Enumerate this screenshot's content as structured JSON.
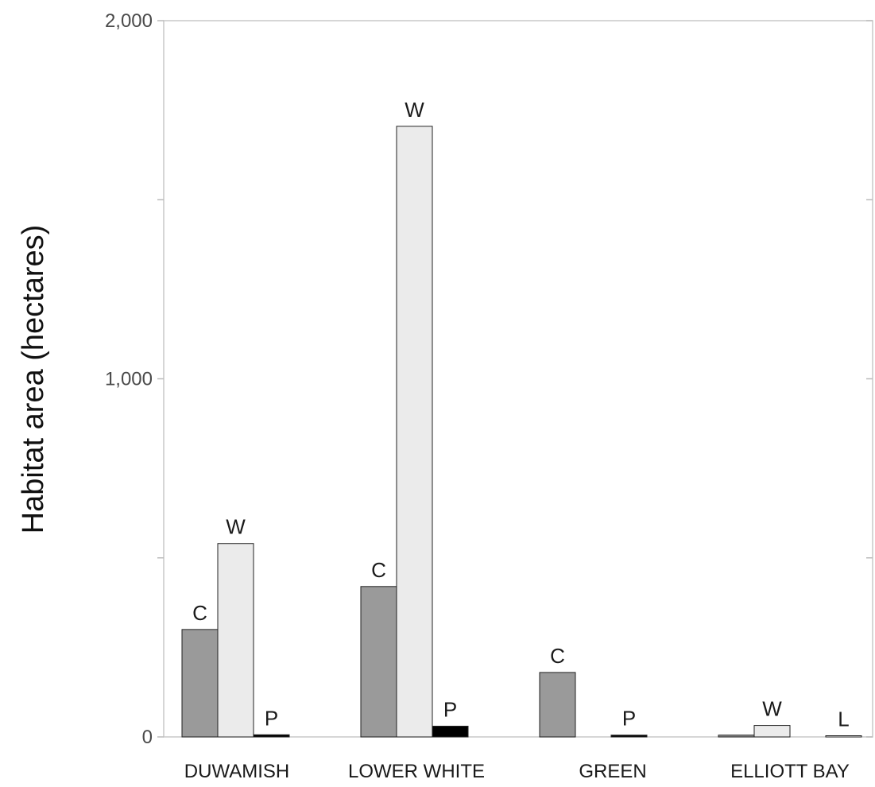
{
  "chart_data": {
    "type": "bar",
    "ylabel": "Habitat area (hectares)",
    "xlabel": "",
    "ylim": [
      0,
      2000
    ],
    "yticks": [
      0,
      500,
      1000,
      1500,
      2000
    ],
    "ytick_labels": [
      "0",
      "",
      "1,000",
      "",
      "2,000"
    ],
    "categories": [
      "DUWAMISH",
      "LOWER WHITE",
      "GREEN",
      "ELLIOTT BAY"
    ],
    "series": [
      {
        "key": "C",
        "color": "#9a9a9a",
        "values": [
          300,
          420,
          180,
          5
        ]
      },
      {
        "key": "W",
        "color": "#ebebeb",
        "values": [
          540,
          1705,
          null,
          32
        ]
      },
      {
        "key": "P",
        "color": "#000000",
        "values": [
          6,
          30,
          5,
          null
        ]
      },
      {
        "key": "L",
        "color": "#ffffff",
        "values": [
          null,
          null,
          null,
          2
        ]
      }
    ],
    "bar_labels": [
      {
        "category": "DUWAMISH",
        "series": "C",
        "text": "C"
      },
      {
        "category": "DUWAMISH",
        "series": "W",
        "text": "W"
      },
      {
        "category": "DUWAMISH",
        "series": "P",
        "text": "P"
      },
      {
        "category": "LOWER WHITE",
        "series": "C",
        "text": "C"
      },
      {
        "category": "LOWER WHITE",
        "series": "W",
        "text": "W"
      },
      {
        "category": "LOWER WHITE",
        "series": "P",
        "text": "P"
      },
      {
        "category": "GREEN",
        "series": "C",
        "text": "C"
      },
      {
        "category": "GREEN",
        "series": "P",
        "text": "P"
      },
      {
        "category": "ELLIOTT BAY",
        "series": "W",
        "text": "W"
      },
      {
        "category": "ELLIOTT BAY",
        "series": "L",
        "text": "L"
      }
    ],
    "grid": false,
    "legend": "none"
  }
}
